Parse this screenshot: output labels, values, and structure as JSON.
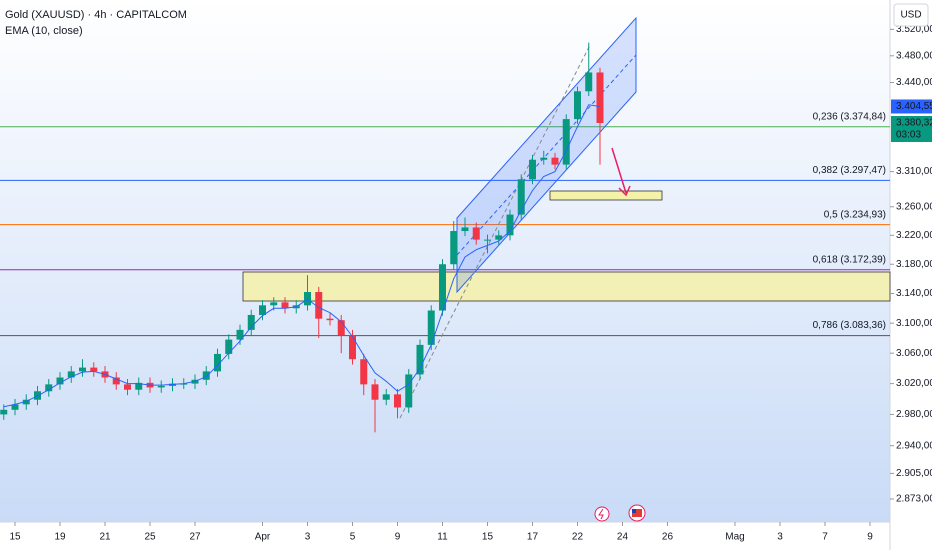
{
  "chart_data": {
    "type": "candlestick",
    "title": "Gold (XAUUSD) · 4h · CAPITALCOM",
    "indicator_name": "EMA (10, close)",
    "currency": "USD",
    "log_scale": true,
    "up_color": "#089981",
    "down_color": "#f23645",
    "ema_color": "#2962ff",
    "x": [
      -0.5,
      0,
      0.5,
      1,
      1.5,
      2,
      2.5,
      3,
      3.5,
      4,
      4.5,
      5,
      5.5,
      6,
      6.5,
      7,
      7.5,
      8,
      8.5,
      9,
      9.5,
      10,
      10.5,
      11,
      11.5,
      12,
      12.5,
      13,
      13.5,
      14,
      14.5,
      15,
      15.5,
      16,
      16.5,
      17,
      17.5,
      18,
      18.5,
      19,
      19.5,
      20,
      20.5,
      21,
      21.5,
      22,
      22.5,
      23,
      23.5,
      24,
      24.5,
      25,
      25.5,
      26
    ],
    "open": [
      2980,
      2986,
      2993,
      2999,
      3010,
      3019,
      3028,
      3036,
      3041,
      3036,
      3028,
      3019,
      3012,
      3021,
      3015,
      3017,
      3020,
      3020,
      3025,
      3036,
      3059,
      3078,
      3091,
      3111,
      3124,
      3128,
      3120,
      3124,
      3142,
      3106,
      3104,
      3084,
      3052,
      3019,
      2999,
      3006,
      2989,
      3032,
      3071,
      3117,
      3180,
      3226,
      3231,
      3214,
      3214,
      3220,
      3249,
      3299,
      3327,
      3330,
      3320,
      3386,
      3427,
      3455
    ],
    "high": [
      2993,
      3000,
      3006,
      3017,
      3026,
      3035,
      3043,
      3052,
      3048,
      3043,
      3035,
      3026,
      3028,
      3028,
      3024,
      3027,
      3027,
      3032,
      3043,
      3066,
      3085,
      3098,
      3118,
      3131,
      3135,
      3135,
      3131,
      3165,
      3149,
      3113,
      3111,
      3091,
      3059,
      3026,
      3013,
      3013,
      3039,
      3078,
      3124,
      3187,
      3240,
      3245,
      3238,
      3221,
      3227,
      3256,
      3306,
      3334,
      3340,
      3337,
      3393,
      3434,
      3500,
      3462
    ],
    "low": [
      2973,
      2979,
      2986,
      2992,
      3003,
      3012,
      3021,
      3029,
      3029,
      3021,
      3012,
      3005,
      3005,
      3008,
      3008,
      3010,
      3013,
      3013,
      3018,
      3029,
      3052,
      3071,
      3084,
      3104,
      3117,
      3113,
      3113,
      3117,
      3080,
      3097,
      3060,
      3045,
      3005,
      2957,
      2992,
      2975,
      2982,
      3025,
      3064,
      3110,
      3173,
      3219,
      3207,
      3195,
      3207,
      3213,
      3242,
      3292,
      3320,
      3313,
      3313,
      3379,
      3420,
      3320
    ],
    "close": [
      2986,
      2993,
      2999,
      3010,
      3019,
      3028,
      3036,
      3041,
      3036,
      3028,
      3019,
      3012,
      3021,
      3015,
      3017,
      3020,
      3020,
      3025,
      3036,
      3059,
      3078,
      3091,
      3111,
      3124,
      3128,
      3120,
      3124,
      3142,
      3106,
      3104,
      3084,
      3052,
      3019,
      2999,
      3006,
      2989,
      3032,
      3071,
      3117,
      3180,
      3226,
      3231,
      3214,
      3214,
      3220,
      3249,
      3299,
      3327,
      3330,
      3320,
      3386,
      3427,
      3455,
      3380.32
    ],
    "ema": [
      2990,
      2993,
      2997,
      3004,
      3012,
      3021,
      3029,
      3035,
      3036,
      3032,
      3026,
      3020,
      3020,
      3018,
      3018,
      3019,
      3020,
      3023,
      3029,
      3044,
      3060,
      3076,
      3095,
      3110,
      3120,
      3120,
      3122,
      3132,
      3121,
      3114,
      3102,
      3082,
      3057,
      3034,
      3023,
      3010,
      3019,
      3040,
      3071,
      3115,
      3160,
      3190,
      3200,
      3206,
      3212,
      3226,
      3255,
      3283,
      3303,
      3310,
      3340,
      3375,
      3407,
      3404.55
    ],
    "ylim": [
      2847,
      3565
    ],
    "yticks": [
      {
        "value": 3520,
        "label": "3.520,00"
      },
      {
        "value": 3480,
        "label": "3.480,00"
      },
      {
        "value": 3440,
        "label": "3.440,00"
      },
      {
        "value": 3310,
        "label": "3.310,00"
      },
      {
        "value": 3260,
        "label": "3.260,00"
      },
      {
        "value": 3220,
        "label": "3.220,00"
      },
      {
        "value": 3180,
        "label": "3.180,00"
      },
      {
        "value": 3140,
        "label": "3.140,00"
      },
      {
        "value": 3100,
        "label": "3.100,00"
      },
      {
        "value": 3060,
        "label": "3.060,00"
      },
      {
        "value": 3020,
        "label": "3.020,00"
      },
      {
        "value": 2980,
        "label": "2.980,00"
      },
      {
        "value": 2940,
        "label": "2.940,00"
      },
      {
        "value": 2905,
        "label": "2.905,00"
      },
      {
        "value": 2873,
        "label": "2.873,00"
      }
    ],
    "xlim": [
      -0.667,
      38.89
    ],
    "xticks": [
      {
        "value": 0,
        "label": "15"
      },
      {
        "value": 2,
        "label": "19"
      },
      {
        "value": 4,
        "label": "21"
      },
      {
        "value": 6,
        "label": "25"
      },
      {
        "value": 8,
        "label": "27"
      },
      {
        "value": 11,
        "label": "Apr"
      },
      {
        "value": 13,
        "label": "3"
      },
      {
        "value": 15,
        "label": "5"
      },
      {
        "value": 17,
        "label": "9"
      },
      {
        "value": 19,
        "label": "11"
      },
      {
        "value": 21,
        "label": "15"
      },
      {
        "value": 23,
        "label": "17"
      },
      {
        "value": 25,
        "label": "22"
      },
      {
        "value": 27,
        "label": "24"
      },
      {
        "value": 29,
        "label": "26"
      },
      {
        "value": 32,
        "label": "Mag"
      },
      {
        "value": 34,
        "label": "3"
      },
      {
        "value": 36,
        "label": "7"
      },
      {
        "value": 38,
        "label": "9"
      }
    ],
    "fib_levels": [
      {
        "value": 3374.84,
        "label": "0,236 (3.374,84)",
        "color": "#4caf50"
      },
      {
        "value": 3297.47,
        "label": "0,382 (3.297,47)",
        "color": "#2962ff"
      },
      {
        "value": 3234.93,
        "label": "0,5 (3.234,93)",
        "color": "#ff6d00"
      },
      {
        "value": 3172.39,
        "label": "0,618 (3.172,39)",
        "color": "#9c27b0"
      },
      {
        "value": 3083.36,
        "label": "0,786 (3.083,36)",
        "color": "#555555"
      }
    ],
    "price_badges": [
      {
        "value": 3404.55,
        "label": "3.404,55",
        "color": "#2962ff"
      },
      {
        "value": 3380.32,
        "label": "3.380,32",
        "color": "#089981",
        "countdown": "03:03"
      }
    ]
  }
}
